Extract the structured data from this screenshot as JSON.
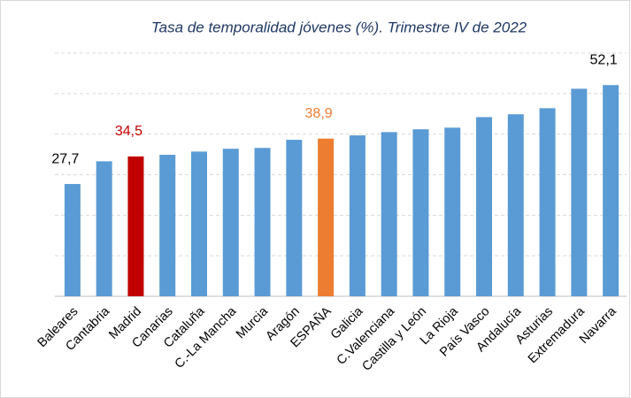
{
  "chart_data": {
    "type": "bar",
    "title": "Tasa de temporalidad jóvenes (%). Trimestre IV de 2022",
    "categories": [
      "Baleares",
      "Cantabria",
      "Madrid",
      "Canarias",
      "Cataluña",
      "C.-La Mancha",
      "Murcia",
      "Aragón",
      "ESPAÑA",
      "Galicia",
      "C.Valenciana",
      "Castilla y León",
      "La Rioja",
      "País Vasco",
      "Andalucía",
      "Asturias",
      "Extremadura",
      "Navarra"
    ],
    "values": [
      27.7,
      33.3,
      34.5,
      34.9,
      35.7,
      36.4,
      36.6,
      38.6,
      38.9,
      39.7,
      40.5,
      41.2,
      41.6,
      44.2,
      44.9,
      46.4,
      51.2,
      52.1
    ],
    "value_labels": [
      "27,7",
      null,
      "34,5",
      null,
      null,
      null,
      null,
      null,
      "38,9",
      null,
      null,
      null,
      null,
      null,
      null,
      null,
      null,
      "52,1"
    ],
    "colors": [
      "#5b9bd5",
      "#5b9bd5",
      "#c00000",
      "#5b9bd5",
      "#5b9bd5",
      "#5b9bd5",
      "#5b9bd5",
      "#5b9bd5",
      "#ed7d31",
      "#5b9bd5",
      "#5b9bd5",
      "#5b9bd5",
      "#5b9bd5",
      "#5b9bd5",
      "#5b9bd5",
      "#5b9bd5",
      "#5b9bd5",
      "#5b9bd5"
    ],
    "label_colors": [
      "#000000",
      null,
      "#c00000",
      null,
      null,
      null,
      null,
      null,
      "#ed7d31",
      null,
      null,
      null,
      null,
      null,
      null,
      null,
      null,
      "#000000"
    ],
    "ylim": [
      0,
      60
    ],
    "yticks": [
      0,
      10,
      20,
      30,
      40,
      50,
      60
    ],
    "grid": true
  }
}
